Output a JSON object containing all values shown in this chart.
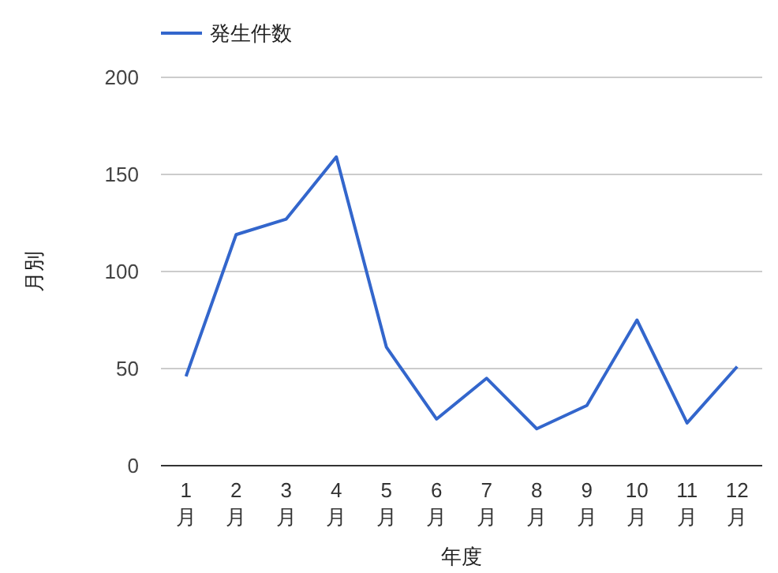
{
  "chart_data": {
    "type": "line",
    "xlabel": "年度",
    "ylabel": "月別",
    "categories": [
      "1月",
      "2月",
      "3月",
      "4月",
      "5月",
      "6月",
      "7月",
      "8月",
      "9月",
      "10月",
      "11月",
      "12月"
    ],
    "series": [
      {
        "name": "発生件数",
        "color": "#3366cc",
        "values": [
          46,
          119,
          127,
          159,
          61,
          24,
          45,
          19,
          31,
          75,
          22,
          51
        ]
      }
    ],
    "ylim": [
      0,
      200
    ],
    "yticks": [
      0,
      50,
      100,
      150,
      200
    ],
    "grid": "y",
    "legend": "top left",
    "marker": "none",
    "line_style": "solid"
  }
}
